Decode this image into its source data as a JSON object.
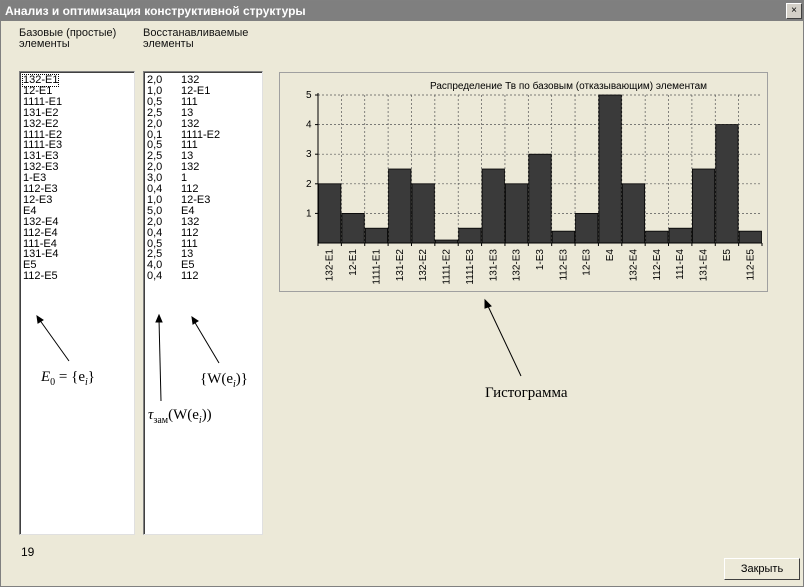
{
  "window": {
    "title": "Анализ и оптимизация конструктивной структуры",
    "close_glyph": "×"
  },
  "column_headers": {
    "base_line1": "Базовые (простые)",
    "base_line2": "элементы",
    "restored_line1": "Восстанавливаемые",
    "restored_line2": "элементы"
  },
  "base_elements": [
    "132-E1",
    "12-E1",
    "1111-E1",
    "131-E2",
    "132-E2",
    "1111-E2",
    "1111-E3",
    "131-E3",
    "132-E3",
    "1-E3",
    "112-E3",
    "12-E3",
    "E4",
    "132-E4",
    "112-E4",
    "111-E4",
    "131-E4",
    "E5",
    "112-E5"
  ],
  "restored_rows": [
    {
      "t": "2,0",
      "w": "132"
    },
    {
      "t": "1,0",
      "w": "12-E1"
    },
    {
      "t": "0,5",
      "w": "111"
    },
    {
      "t": "2,5",
      "w": "13"
    },
    {
      "t": "2,0",
      "w": "132"
    },
    {
      "t": "0,1",
      "w": "1111-E2"
    },
    {
      "t": "0,5",
      "w": "111"
    },
    {
      "t": "2,5",
      "w": "13"
    },
    {
      "t": "2,0",
      "w": "132"
    },
    {
      "t": "3,0",
      "w": "1"
    },
    {
      "t": "0,4",
      "w": "112"
    },
    {
      "t": "1,0",
      "w": "12-E3"
    },
    {
      "t": "5,0",
      "w": "E4"
    },
    {
      "t": "2,0",
      "w": "132"
    },
    {
      "t": "0,4",
      "w": "112"
    },
    {
      "t": "0,5",
      "w": "111"
    },
    {
      "t": "2,5",
      "w": "13"
    },
    {
      "t": "4,0",
      "w": "E5"
    },
    {
      "t": "0,4",
      "w": "112"
    }
  ],
  "chart_data": {
    "type": "bar",
    "title": "Распределение Тв по базовым (отказывающим) элементам",
    "categories": [
      "132-E1",
      "12-E1",
      "1111-E1",
      "131-E2",
      "132-E2",
      "1111-E2",
      "1111-E3",
      "131-E3",
      "132-E3",
      "1-E3",
      "112-E3",
      "12-E3",
      "E4",
      "132-E4",
      "112-E4",
      "111-E4",
      "131-E4",
      "E5",
      "112-E5"
    ],
    "values": [
      2.0,
      1.0,
      0.5,
      2.5,
      2.0,
      0.1,
      0.5,
      2.5,
      2.0,
      3.0,
      0.4,
      1.0,
      5.0,
      2.0,
      0.4,
      0.5,
      2.5,
      4.0,
      0.4
    ],
    "yticks": [
      "1",
      "2",
      "3",
      "4",
      "5"
    ],
    "ylim": [
      0,
      5
    ],
    "grid": true,
    "bar_color": "#3a3a3a"
  },
  "annotations": {
    "e0_main": "E",
    "e0_sub": "0",
    "e0_rest": " = {e",
    "e0_sub2": "i",
    "e0_end": "}",
    "tau_main": "τ",
    "tau_sub": "зам",
    "tau_rest": "(W(e",
    "tau_sub2": "i",
    "tau_end": "))",
    "w_main": "{W(e",
    "w_sub": "i",
    "w_end": ")}",
    "histogram": "Гистограмма"
  },
  "status": {
    "count": "19"
  },
  "buttons": {
    "close": "Закрыть"
  }
}
